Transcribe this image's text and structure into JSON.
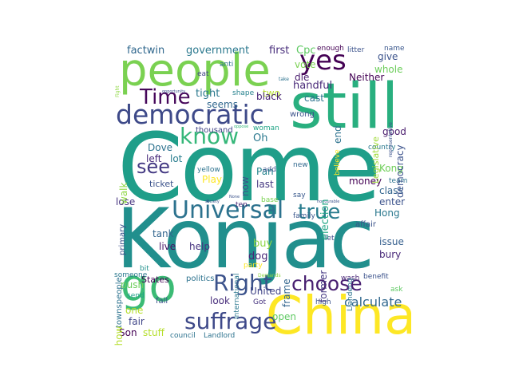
{
  "words": [
    {
      "text": "Come",
      "color": "#1f9e89"
    },
    {
      "text": "Konjac",
      "color": "#218f8d"
    },
    {
      "text": "still",
      "color": "#29af7f"
    },
    {
      "text": "China",
      "color": "#fde725"
    },
    {
      "text": "people",
      "color": "#7ad151"
    },
    {
      "text": "go",
      "color": "#3bbb75"
    },
    {
      "text": "democratic",
      "color": "#3e4a89"
    },
    {
      "text": "Universal",
      "color": "#2c728e"
    },
    {
      "text": "yes",
      "color": "#440154"
    },
    {
      "text": "Right",
      "color": "#3b528b"
    },
    {
      "text": "suffrage",
      "color": "#3e4989"
    },
    {
      "text": "choose",
      "color": "#481f70"
    },
    {
      "text": "know",
      "color": "#35b779"
    },
    {
      "text": "Time",
      "color": "#46075a"
    },
    {
      "text": "true",
      "color": "#287c8e"
    },
    {
      "text": "see",
      "color": "#443983"
    },
    {
      "text": "calculate",
      "color": "#31688e"
    },
    {
      "text": "government",
      "color": "#2a788e"
    },
    {
      "text": "factwin",
      "color": "#31688e"
    },
    {
      "text": "first",
      "color": "#472d7b"
    },
    {
      "text": "Cpc",
      "color": "#5ec962"
    },
    {
      "text": "give",
      "color": "#3b528b"
    },
    {
      "text": "whole",
      "color": "#6ccd5a"
    },
    {
      "text": "Neither",
      "color": "#440154"
    },
    {
      "text": "vote",
      "color": "#7ad151"
    },
    {
      "text": "die",
      "color": "#481a6c"
    },
    {
      "text": "handful",
      "color": "#482878"
    },
    {
      "text": "wrong",
      "color": "#3b528b"
    },
    {
      "text": "two",
      "color": "#b5de2b"
    },
    {
      "text": "cast",
      "color": "#2c728e"
    },
    {
      "text": "tight",
      "color": "#2a788e"
    },
    {
      "text": "black",
      "color": "#482475"
    },
    {
      "text": "seems",
      "color": "#31688e"
    },
    {
      "text": "eat",
      "color": "#414487"
    },
    {
      "text": "shape",
      "color": "#26828e"
    },
    {
      "text": "thousand",
      "color": "#414487"
    },
    {
      "text": "woman",
      "color": "#20a486"
    },
    {
      "text": "Oh",
      "color": "#2a788e"
    },
    {
      "text": "Dove",
      "color": "#2c728e"
    },
    {
      "text": "lot",
      "color": "#287d8e"
    },
    {
      "text": "left",
      "color": "#472a7a"
    },
    {
      "text": "ticket",
      "color": "#3b528b"
    },
    {
      "text": "Play",
      "color": "#fde725"
    },
    {
      "text": "yellow",
      "color": "#2c728e"
    },
    {
      "text": "last",
      "color": "#453882"
    },
    {
      "text": "Pan",
      "color": "#25858e"
    },
    {
      "text": "add",
      "color": "#3b528b"
    },
    {
      "text": "new",
      "color": "#31688e"
    },
    {
      "text": "say",
      "color": "#38588c"
    },
    {
      "text": "ten",
      "color": "#482475"
    },
    {
      "text": "base",
      "color": "#7ad151"
    },
    {
      "text": "lose",
      "color": "#46337f"
    },
    {
      "text": "tank",
      "color": "#32658e"
    },
    {
      "text": "help",
      "color": "#46337f"
    },
    {
      "text": "live",
      "color": "#471365"
    },
    {
      "text": "buy",
      "color": "#8fd744"
    },
    {
      "text": "dog",
      "color": "#482878"
    },
    {
      "text": "family",
      "color": "#39568c"
    },
    {
      "text": "let",
      "color": "#3f4889"
    },
    {
      "text": "affair",
      "color": "#3b528b"
    },
    {
      "text": "Kong",
      "color": "#6ece58"
    },
    {
      "text": "money",
      "color": "#440154"
    },
    {
      "text": "class",
      "color": "#32648e"
    },
    {
      "text": "enter",
      "color": "#3b528b"
    },
    {
      "text": "Hong",
      "color": "#2a788e"
    },
    {
      "text": "good",
      "color": "#481a6c"
    },
    {
      "text": "country",
      "color": "#2a788e"
    },
    {
      "text": "team",
      "color": "#2c728e"
    },
    {
      "text": "issue",
      "color": "#355f8d"
    },
    {
      "text": "bury",
      "color": "#482878"
    },
    {
      "text": "benefit",
      "color": "#3b528b"
    },
    {
      "text": "ask",
      "color": "#5ec962"
    },
    {
      "text": "wash",
      "color": "#482576"
    },
    {
      "text": "high",
      "color": "#3b528b"
    },
    {
      "text": "Son",
      "color": "#440154"
    },
    {
      "text": "stuff",
      "color": "#b5de2b"
    },
    {
      "text": "council",
      "color": "#2c728e"
    },
    {
      "text": "Landlord",
      "color": "#2c728e"
    },
    {
      "text": "Got",
      "color": "#46337f"
    },
    {
      "text": "open",
      "color": "#5ec962"
    },
    {
      "text": "United",
      "color": "#414487"
    },
    {
      "text": "look",
      "color": "#472d7b"
    },
    {
      "text": "politics",
      "color": "#2c728e"
    },
    {
      "text": "States",
      "color": "#440154"
    },
    {
      "text": "push",
      "color": "#6ccd5a"
    },
    {
      "text": "someone",
      "color": "#2a788e"
    },
    {
      "text": "bit",
      "color": "#21918c"
    },
    {
      "text": "send",
      "color": "#1f9e89"
    },
    {
      "text": "one",
      "color": "#b5de2b"
    },
    {
      "text": "fall",
      "color": "#3b528b"
    },
    {
      "text": "fair",
      "color": "#404688"
    },
    {
      "text": "party",
      "color": "#fde725"
    },
    {
      "text": "Demands",
      "color": "#8fd744"
    },
    {
      "text": "take",
      "color": "#2c728e"
    },
    {
      "text": "litter",
      "color": "#3b528b"
    },
    {
      "text": "enough",
      "color": "#440154"
    },
    {
      "text": "name",
      "color": "#39568c"
    },
    {
      "text": "society",
      "color": "#3b528b"
    },
    {
      "text": "None",
      "color": "#3b528b"
    },
    {
      "text": "oppose",
      "color": "#35b779"
    },
    {
      "text": "opportunity",
      "color": "#3b528b"
    },
    {
      "text": "honourable",
      "color": "#3b528b"
    },
    {
      "text": "anti",
      "color": "#2c728e"
    },
    {
      "text": "Fight",
      "color": "#8fd744"
    },
    {
      "text": "democracy",
      "color": "#3b528b"
    },
    {
      "text": "Legislative",
      "color": "#a0da39"
    },
    {
      "text": "representative",
      "color": "#3b528b"
    },
    {
      "text": "believe",
      "color": "#fde725"
    },
    {
      "text": "end",
      "color": "#2c728e"
    },
    {
      "text": "election",
      "color": "#21a685"
    },
    {
      "text": "former",
      "color": "#443983"
    },
    {
      "text": "frame",
      "color": "#32658e"
    },
    {
      "text": "International",
      "color": "#2a788e"
    },
    {
      "text": "Liandeng",
      "color": "#2c728e"
    },
    {
      "text": "primary",
      "color": "#3b528b"
    },
    {
      "text": "walk",
      "color": "#8fd744"
    },
    {
      "text": "now",
      "color": "#3b528b"
    },
    {
      "text": "townspeople",
      "color": "#2c728e"
    },
    {
      "text": "Show",
      "color": "#b5de2b"
    }
  ]
}
